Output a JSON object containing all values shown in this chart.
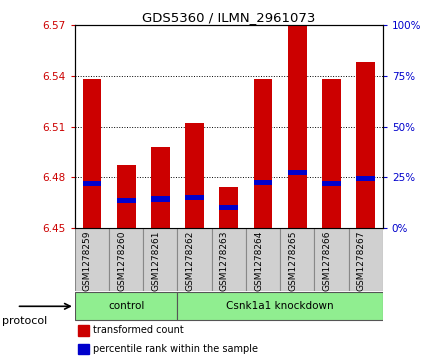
{
  "title": "GDS5360 / ILMN_2961073",
  "samples": [
    "GSM1278259",
    "GSM1278260",
    "GSM1278261",
    "GSM1278262",
    "GSM1278263",
    "GSM1278264",
    "GSM1278265",
    "GSM1278266",
    "GSM1278267"
  ],
  "transformed_counts": [
    6.538,
    6.487,
    6.498,
    6.512,
    6.474,
    6.538,
    6.57,
    6.538,
    6.548
  ],
  "percentile_values": [
    6.476,
    6.466,
    6.467,
    6.468,
    6.462,
    6.477,
    6.483,
    6.476,
    6.479
  ],
  "ylim": [
    6.45,
    6.57
  ],
  "yticks_left": [
    6.45,
    6.48,
    6.51,
    6.54,
    6.57
  ],
  "yticks_right_pct": [
    0,
    25,
    50,
    75,
    100
  ],
  "bar_color": "#cc0000",
  "percentile_color": "#0000cc",
  "bar_width": 0.55,
  "base_value": 6.45,
  "protocol_groups": [
    {
      "label": "control",
      "start": 0,
      "end": 3
    },
    {
      "label": "Csnk1a1 knockdown",
      "start": 3,
      "end": 9
    }
  ],
  "protocol_color": "#90ee90",
  "protocol_label": "protocol",
  "legend_items": [
    {
      "label": "transformed count",
      "color": "#cc0000"
    },
    {
      "label": "percentile rank within the sample",
      "color": "#0000cc"
    }
  ],
  "tick_label_color_left": "#cc0000",
  "tick_label_color_right": "#0000cc",
  "xticklabel_bg": "#d0d0d0",
  "xticklabel_sep_color": "#888888"
}
